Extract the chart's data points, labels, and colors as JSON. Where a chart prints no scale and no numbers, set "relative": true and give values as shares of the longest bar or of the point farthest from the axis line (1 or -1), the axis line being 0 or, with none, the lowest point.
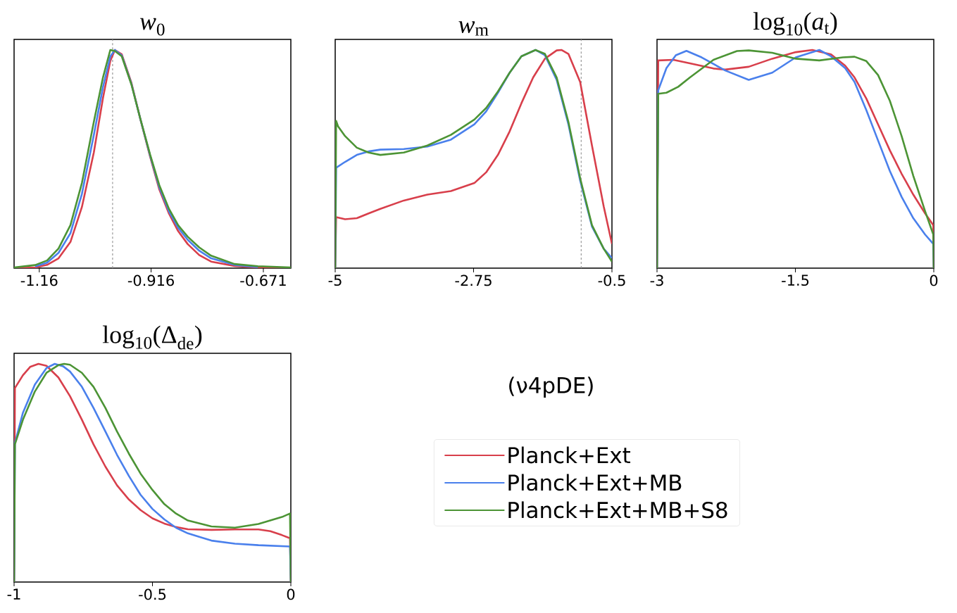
{
  "chart_data": [
    {
      "type": "line",
      "title": "*w*$_{0}$",
      "relative": true,
      "xlim": [
        -1.215,
        -0.611
      ],
      "xticks": [
        -1.16,
        -0.916,
        -0.671
      ],
      "ref_lines": [
        {
          "axis": "x",
          "value": -1.0,
          "color": "#999999",
          "line_style": "dashed"
        }
      ],
      "series": [
        {
          "color": "#d83f4b",
          "x": [
            -1.215,
            -1.169,
            -1.143,
            -1.118,
            -1.092,
            -1.067,
            -1.041,
            -1.021,
            -1.005,
            -0.995,
            -0.98,
            -0.959,
            -0.939,
            -0.918,
            -0.898,
            -0.877,
            -0.857,
            -0.836,
            -0.811,
            -0.785,
            -0.734,
            -0.683,
            -0.611
          ],
          "values": [
            0,
            0.003,
            0.015,
            0.045,
            0.12,
            0.28,
            0.53,
            0.78,
            0.95,
            1.0,
            0.98,
            0.85,
            0.68,
            0.51,
            0.36,
            0.25,
            0.17,
            0.11,
            0.06,
            0.03,
            0.01,
            0.003,
            0
          ]
        },
        {
          "color": "#4a80ec",
          "x": [
            -1.169,
            -1.143,
            -1.118,
            -1.092,
            -1.067,
            -1.041,
            -1.021,
            -1.005,
            -0.995,
            -0.98,
            -0.959,
            -0.939,
            -0.918,
            -0.898,
            -0.877,
            -0.857,
            -0.836,
            -0.811,
            -0.785,
            -0.734,
            -0.683
          ],
          "values": [
            0.008,
            0.025,
            0.07,
            0.16,
            0.34,
            0.61,
            0.83,
            0.97,
            1.0,
            0.975,
            0.845,
            0.68,
            0.515,
            0.37,
            0.26,
            0.185,
            0.13,
            0.08,
            0.045,
            0.015,
            0.005
          ]
        },
        {
          "color": "#4c9435",
          "x": [
            -1.215,
            -1.169,
            -1.143,
            -1.118,
            -1.092,
            -1.067,
            -1.041,
            -1.021,
            -1.005,
            -0.995,
            -0.98,
            -0.959,
            -0.939,
            -0.918,
            -0.898,
            -0.877,
            -0.857,
            -0.836,
            -0.811,
            -0.785,
            -0.734,
            -0.683,
            -0.611
          ],
          "values": [
            0.003,
            0.014,
            0.035,
            0.09,
            0.197,
            0.39,
            0.67,
            0.874,
            1.0,
            0.995,
            0.971,
            0.842,
            0.681,
            0.52,
            0.38,
            0.272,
            0.197,
            0.144,
            0.095,
            0.057,
            0.019,
            0.009,
            0.003
          ]
        }
      ]
    },
    {
      "type": "line",
      "title": "*w*$_{m}$",
      "relative": true,
      "xlim": [
        -5,
        -0.5
      ],
      "xticks": [
        -5,
        -2.75,
        -0.5
      ],
      "ref_lines": [
        {
          "axis": "x",
          "value": -1.0,
          "color": "#999999",
          "line_style": "dashed"
        }
      ],
      "series": [
        {
          "color": "#d83f4b",
          "x": [
            -5,
            -4.985,
            -4.839,
            -4.648,
            -4.457,
            -4.266,
            -3.884,
            -3.501,
            -3.119,
            -2.737,
            -2.546,
            -2.354,
            -2.163,
            -1.972,
            -1.781,
            -1.59,
            -1.399,
            -1.322,
            -1.208,
            -1.017,
            -0.825,
            -0.634,
            -0.5
          ],
          "values": [
            0,
            0.234,
            0.224,
            0.229,
            0.251,
            0.272,
            0.31,
            0.337,
            0.353,
            0.39,
            0.439,
            0.519,
            0.627,
            0.756,
            0.874,
            0.96,
            0.998,
            1.0,
            0.982,
            0.853,
            0.562,
            0.283,
            0.111
          ]
        },
        {
          "color": "#4a80ec",
          "x": [
            -5,
            -4.985,
            -4.839,
            -4.648,
            -4.457,
            -4.266,
            -3.884,
            -3.501,
            -3.119,
            -2.737,
            -2.546,
            -2.354,
            -2.163,
            -1.972,
            -1.743,
            -1.59,
            -1.399,
            -1.208,
            -1.017,
            -0.825,
            -0.634,
            -0.5
          ],
          "values": [
            0,
            0.46,
            0.487,
            0.519,
            0.535,
            0.543,
            0.546,
            0.557,
            0.589,
            0.659,
            0.718,
            0.804,
            0.896,
            0.971,
            1.0,
            0.976,
            0.863,
            0.659,
            0.401,
            0.191,
            0.089,
            0.046
          ]
        },
        {
          "color": "#4c9435",
          "x": [
            -5,
            -4.985,
            -4.954,
            -4.839,
            -4.648,
            -4.457,
            -4.266,
            -3.884,
            -3.501,
            -3.119,
            -2.737,
            -2.546,
            -2.354,
            -2.163,
            -1.972,
            -1.743,
            -1.59,
            -1.399,
            -1.208,
            -1.017,
            -0.825,
            -0.634,
            -0.5
          ],
          "values": [
            0,
            0.675,
            0.65,
            0.605,
            0.552,
            0.53,
            0.519,
            0.53,
            0.562,
            0.611,
            0.681,
            0.734,
            0.81,
            0.896,
            0.971,
            1.0,
            0.982,
            0.874,
            0.67,
            0.412,
            0.197,
            0.089,
            0.03
          ]
        }
      ]
    },
    {
      "type": "line",
      "title": "log$_{10}$(*a*$_{t}$)",
      "relative": true,
      "xlim": [
        -3,
        0
      ],
      "xticks": [
        -3,
        -1.5,
        0
      ],
      "series": [
        {
          "color": "#d83f4b",
          "x": [
            -3,
            -2.987,
            -2.822,
            -2.643,
            -2.388,
            -2.261,
            -2.006,
            -1.751,
            -1.496,
            -1.317,
            -1.114,
            -0.961,
            -0.859,
            -0.731,
            -0.604,
            -0.476,
            -0.349,
            -0.222,
            -0.094,
            -0.005,
            0
          ],
          "values": [
            0,
            0.952,
            0.955,
            0.939,
            0.915,
            0.91,
            0.923,
            0.96,
            0.99,
            1.0,
            0.98,
            0.928,
            0.874,
            0.777,
            0.659,
            0.54,
            0.433,
            0.337,
            0.251,
            0.197,
            0
          ]
        },
        {
          "color": "#4a80ec",
          "x": [
            -3,
            -2.987,
            -2.898,
            -2.796,
            -2.681,
            -2.516,
            -2.261,
            -2.006,
            -1.751,
            -1.496,
            -1.241,
            -1.114,
            -0.961,
            -0.859,
            -0.731,
            -0.604,
            -0.476,
            -0.349,
            -0.222,
            -0.094,
            -0.005,
            0
          ],
          "values": [
            0,
            0.815,
            0.917,
            0.976,
            0.996,
            0.966,
            0.906,
            0.863,
            0.896,
            0.966,
            1.0,
            0.971,
            0.917,
            0.853,
            0.724,
            0.585,
            0.445,
            0.327,
            0.229,
            0.154,
            0.111,
            0
          ]
        },
        {
          "color": "#4c9435",
          "x": [
            -3,
            -2.987,
            -2.898,
            -2.771,
            -2.643,
            -2.388,
            -2.133,
            -2.006,
            -1.751,
            -1.496,
            -1.241,
            -0.986,
            -0.859,
            -0.731,
            -0.604,
            -0.476,
            -0.349,
            -0.222,
            -0.094,
            -0.005,
            0
          ],
          "values": [
            0,
            0.799,
            0.804,
            0.831,
            0.874,
            0.955,
            0.995,
            0.998,
            0.987,
            0.96,
            0.952,
            0.966,
            0.969,
            0.949,
            0.885,
            0.767,
            0.606,
            0.423,
            0.261,
            0.154,
            0
          ]
        }
      ]
    },
    {
      "type": "line",
      "title": "log$_{10}$(Δ$_{de}$)",
      "relative": true,
      "xlim": [
        -1,
        0
      ],
      "xticks": [
        -1,
        -0.5,
        0
      ],
      "legend": "right",
      "legend_title": "(ν4pDE)",
      "series": [
        {
          "name": "Planck+Ext",
          "color": "#d83f4b",
          "x": [
            -1,
            -0.997,
            -0.968,
            -0.942,
            -0.912,
            -0.883,
            -0.84,
            -0.798,
            -0.755,
            -0.713,
            -0.67,
            -0.628,
            -0.585,
            -0.543,
            -0.5,
            -0.457,
            -0.415,
            -0.372,
            -0.287,
            -0.202,
            -0.117,
            -0.074,
            -0.032,
            -0.003,
            0
          ],
          "values": [
            0,
            0.889,
            0.948,
            0.986,
            1.0,
            0.991,
            0.938,
            0.852,
            0.744,
            0.631,
            0.529,
            0.443,
            0.378,
            0.33,
            0.292,
            0.268,
            0.252,
            0.242,
            0.239,
            0.241,
            0.241,
            0.233,
            0.215,
            0.201,
            0
          ]
        },
        {
          "name": "Planck+Ext+MB",
          "color": "#4a80ec",
          "x": [
            -1,
            -0.997,
            -0.968,
            -0.925,
            -0.883,
            -0.853,
            -0.823,
            -0.798,
            -0.755,
            -0.713,
            -0.67,
            -0.628,
            -0.585,
            -0.543,
            -0.5,
            -0.457,
            -0.415,
            -0.372,
            -0.287,
            -0.202,
            -0.117,
            -0.003,
            0
          ],
          "values": [
            0,
            0.637,
            0.776,
            0.905,
            0.981,
            1.0,
            0.989,
            0.965,
            0.895,
            0.798,
            0.69,
            0.583,
            0.486,
            0.4,
            0.335,
            0.287,
            0.249,
            0.223,
            0.19,
            0.176,
            0.169,
            0.163,
            0
          ]
        },
        {
          "name": "Planck+Ext+MB+S8",
          "color": "#4c9435",
          "x": [
            -1,
            -0.997,
            -0.968,
            -0.925,
            -0.883,
            -0.84,
            -0.819,
            -0.798,
            -0.755,
            -0.713,
            -0.67,
            -0.628,
            -0.585,
            -0.543,
            -0.5,
            -0.457,
            -0.415,
            -0.372,
            -0.287,
            -0.202,
            -0.117,
            -0.032,
            -0.003,
            0
          ],
          "values": [
            0,
            0.631,
            0.744,
            0.873,
            0.959,
            0.994,
            1.0,
            0.996,
            0.959,
            0.895,
            0.798,
            0.69,
            0.588,
            0.497,
            0.422,
            0.357,
            0.314,
            0.282,
            0.255,
            0.249,
            0.266,
            0.298,
            0.314,
            0
          ]
        }
      ]
    }
  ]
}
